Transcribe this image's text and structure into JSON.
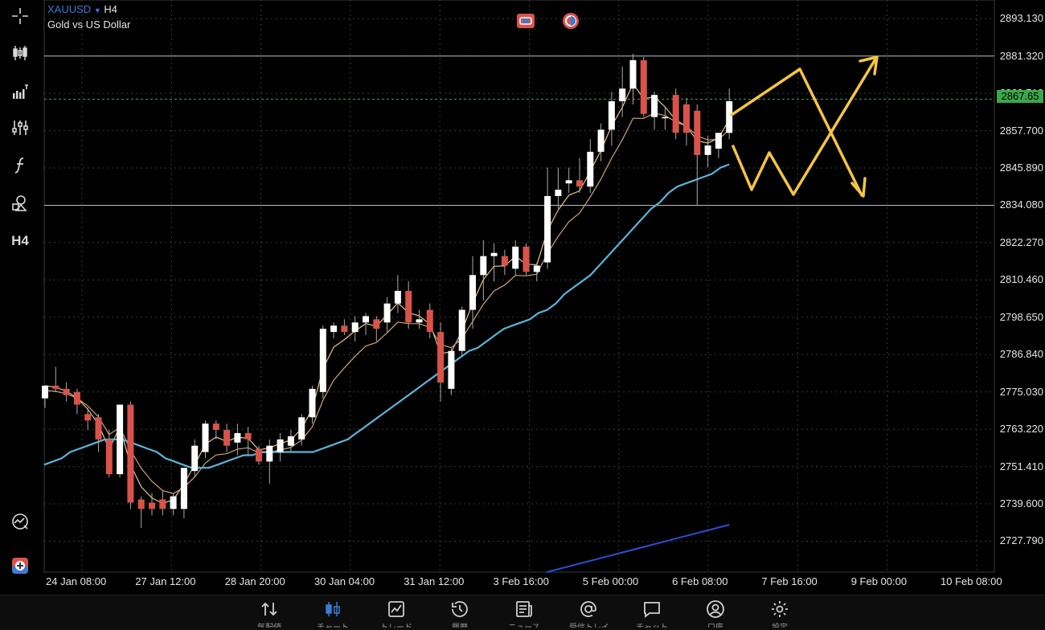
{
  "symbol": {
    "name": "XAUUSD",
    "timeframe": "H4",
    "description": "Gold vs US Dollar"
  },
  "left_toolbar": {
    "timeframe_label": "H4",
    "icons": [
      "crosshair-icon",
      "candle-chart-icon",
      "volume-bars-icon",
      "indicators-icon",
      "function-icon",
      "objects-icon",
      "timeframe-label",
      "quick-analysis-icon",
      "trade-icon"
    ]
  },
  "price_axis": {
    "labels": [
      "2893.130",
      "2881.320",
      "2869.510",
      "2857.700",
      "2845.890",
      "2834.080",
      "2822.270",
      "2810.460",
      "2798.650",
      "2786.840",
      "2775.030",
      "2763.220",
      "2751.410",
      "2739.600",
      "2727.790"
    ],
    "current_price": "2867.65",
    "current_color": "#3aa84a"
  },
  "time_axis": {
    "labels": [
      "24 Jan 08:00",
      "27 Jan 12:00",
      "28 Jan 20:00",
      "30 Jan 04:00",
      "31 Jan 12:00",
      "3 Feb 16:00",
      "5 Feb 00:00",
      "6 Feb 08:00",
      "7 Feb 16:00",
      "9 Feb 00:00",
      "10 Feb 08:00"
    ]
  },
  "colors": {
    "bull": "#ffffff",
    "bear": "#d9534a",
    "ma_fast": "#e8c48a",
    "ma_slow": "#c9a37a",
    "ma_mid": "#5ab4dc",
    "ma_long": "#2a4fd0",
    "arrows": "#f5c542",
    "accent": "#3a7bd5"
  },
  "chart_data": {
    "type": "candlestick",
    "symbol": "XAUUSD",
    "timeframe": "H4",
    "ylim": [
      2718,
      2897
    ],
    "candles": [
      {
        "o": 2773,
        "h": 2777,
        "l": 2770,
        "c": 2777
      },
      {
        "o": 2777,
        "h": 2783,
        "l": 2775,
        "c": 2776
      },
      {
        "o": 2776,
        "h": 2778,
        "l": 2772,
        "c": 2774
      },
      {
        "o": 2775,
        "h": 2776,
        "l": 2768,
        "c": 2771
      },
      {
        "o": 2768,
        "h": 2770,
        "l": 2763,
        "c": 2766
      },
      {
        "o": 2767,
        "h": 2768,
        "l": 2756,
        "c": 2760
      },
      {
        "o": 2760,
        "h": 2763,
        "l": 2748,
        "c": 2749
      },
      {
        "o": 2749,
        "h": 2771,
        "l": 2748,
        "c": 2771
      },
      {
        "o": 2771,
        "h": 2772,
        "l": 2738,
        "c": 2740
      },
      {
        "o": 2741,
        "h": 2742,
        "l": 2732,
        "c": 2738
      },
      {
        "o": 2740,
        "h": 2743,
        "l": 2736,
        "c": 2738
      },
      {
        "o": 2741,
        "h": 2744,
        "l": 2736,
        "c": 2738
      },
      {
        "o": 2738,
        "h": 2743,
        "l": 2736,
        "c": 2742
      },
      {
        "o": 2738,
        "h": 2751,
        "l": 2735,
        "c": 2751
      },
      {
        "o": 2750,
        "h": 2760,
        "l": 2748,
        "c": 2758
      },
      {
        "o": 2756,
        "h": 2766,
        "l": 2754,
        "c": 2765
      },
      {
        "o": 2765,
        "h": 2766,
        "l": 2760,
        "c": 2763
      },
      {
        "o": 2763,
        "h": 2765,
        "l": 2756,
        "c": 2758
      },
      {
        "o": 2759,
        "h": 2765,
        "l": 2755,
        "c": 2762
      },
      {
        "o": 2762,
        "h": 2764,
        "l": 2755,
        "c": 2760
      },
      {
        "o": 2757,
        "h": 2758,
        "l": 2752,
        "c": 2753
      },
      {
        "o": 2753,
        "h": 2760,
        "l": 2746,
        "c": 2758
      },
      {
        "o": 2756,
        "h": 2762,
        "l": 2753,
        "c": 2760
      },
      {
        "o": 2758,
        "h": 2763,
        "l": 2756,
        "c": 2761
      },
      {
        "o": 2760,
        "h": 2768,
        "l": 2758,
        "c": 2767
      },
      {
        "o": 2767,
        "h": 2777,
        "l": 2765,
        "c": 2776
      },
      {
        "o": 2775,
        "h": 2796,
        "l": 2773,
        "c": 2795
      },
      {
        "o": 2794,
        "h": 2797,
        "l": 2792,
        "c": 2796
      },
      {
        "o": 2796,
        "h": 2798,
        "l": 2793,
        "c": 2794
      },
      {
        "o": 2794,
        "h": 2799,
        "l": 2791,
        "c": 2797
      },
      {
        "o": 2797,
        "h": 2800,
        "l": 2793,
        "c": 2799
      },
      {
        "o": 2798,
        "h": 2799,
        "l": 2791,
        "c": 2795
      },
      {
        "o": 2797,
        "h": 2805,
        "l": 2794,
        "c": 2803
      },
      {
        "o": 2803,
        "h": 2812,
        "l": 2800,
        "c": 2807
      },
      {
        "o": 2807,
        "h": 2810,
        "l": 2795,
        "c": 2797
      },
      {
        "o": 2797,
        "h": 2801,
        "l": 2795,
        "c": 2798
      },
      {
        "o": 2801,
        "h": 2803,
        "l": 2792,
        "c": 2794
      },
      {
        "o": 2794,
        "h": 2797,
        "l": 2772,
        "c": 2778
      },
      {
        "o": 2776,
        "h": 2789,
        "l": 2774,
        "c": 2788
      },
      {
        "o": 2788,
        "h": 2802,
        "l": 2786,
        "c": 2801
      },
      {
        "o": 2801,
        "h": 2818,
        "l": 2795,
        "c": 2812
      },
      {
        "o": 2812,
        "h": 2823,
        "l": 2804,
        "c": 2818
      },
      {
        "o": 2818,
        "h": 2822,
        "l": 2810,
        "c": 2819
      },
      {
        "o": 2818,
        "h": 2820,
        "l": 2812,
        "c": 2815
      },
      {
        "o": 2814,
        "h": 2823,
        "l": 2812,
        "c": 2821
      },
      {
        "o": 2821,
        "h": 2822,
        "l": 2812,
        "c": 2813
      },
      {
        "o": 2813,
        "h": 2816,
        "l": 2810,
        "c": 2815
      },
      {
        "o": 2816,
        "h": 2846,
        "l": 2814,
        "c": 2837
      },
      {
        "o": 2837,
        "h": 2846,
        "l": 2833,
        "c": 2839
      },
      {
        "o": 2841,
        "h": 2846,
        "l": 2838,
        "c": 2842
      },
      {
        "o": 2842,
        "h": 2849,
        "l": 2838,
        "c": 2840
      },
      {
        "o": 2840,
        "h": 2855,
        "l": 2838,
        "c": 2851
      },
      {
        "o": 2851,
        "h": 2860,
        "l": 2848,
        "c": 2858
      },
      {
        "o": 2858,
        "h": 2870,
        "l": 2853,
        "c": 2867
      },
      {
        "o": 2867,
        "h": 2878,
        "l": 2862,
        "c": 2871
      },
      {
        "o": 2871,
        "h": 2882,
        "l": 2866,
        "c": 2880
      },
      {
        "o": 2880,
        "h": 2881,
        "l": 2862,
        "c": 2863
      },
      {
        "o": 2862,
        "h": 2870,
        "l": 2858,
        "c": 2869
      },
      {
        "o": 2862,
        "h": 2865,
        "l": 2858,
        "c": 2862
      },
      {
        "o": 2869,
        "h": 2871,
        "l": 2855,
        "c": 2857
      },
      {
        "o": 2866,
        "h": 2868,
        "l": 2853,
        "c": 2857
      },
      {
        "o": 2864,
        "h": 2866,
        "l": 2834,
        "c": 2850
      },
      {
        "o": 2850,
        "h": 2856,
        "l": 2846,
        "c": 2853
      },
      {
        "o": 2852,
        "h": 2857,
        "l": 2849,
        "c": 2857
      },
      {
        "o": 2857,
        "h": 2871,
        "l": 2855,
        "c": 2867
      }
    ],
    "ma_mid": [
      2752,
      2753,
      2754,
      2756,
      2757,
      2758,
      2759,
      2760,
      2760,
      2760,
      2759,
      2758,
      2757,
      2756,
      2754,
      2753,
      2752,
      2751,
      2751,
      2751,
      2752,
      2753,
      2754,
      2755,
      2755,
      2756,
      2756,
      2756,
      2756,
      2756,
      2756,
      2756,
      2757,
      2758,
      2759,
      2760,
      2762,
      2764,
      2766,
      2768,
      2770,
      2772,
      2774,
      2776,
      2778,
      2780,
      2782,
      2784,
      2786,
      2788,
      2789,
      2791,
      2793,
      2795,
      2796,
      2797,
      2798,
      2800,
      2801,
      2803,
      2806,
      2808,
      2810,
      2812,
      2815,
      2818,
      2821,
      2824,
      2827,
      2830,
      2833,
      2835,
      2838,
      2840,
      2841,
      2842,
      2843,
      2844,
      2846,
      2847
    ],
    "ma_long": [
      2718,
      2719,
      2720,
      2721,
      2722,
      2723,
      2724,
      2725,
      2726,
      2727,
      2728,
      2729,
      2730,
      2731,
      2732,
      2733
    ],
    "annotations": {
      "horizontal_levels": [
        2881.3,
        2834.08
      ],
      "current_price_level": 2867.65
    }
  },
  "tabs": [
    {
      "id": "quotes",
      "icon": "quotes-icon",
      "label": "気配値"
    },
    {
      "id": "chart",
      "icon": "chart-icon",
      "label": "チャート",
      "active": true
    },
    {
      "id": "trade",
      "icon": "trade-icon",
      "label": "トレード"
    },
    {
      "id": "history",
      "icon": "history-icon",
      "label": "履歴"
    },
    {
      "id": "news",
      "icon": "news-icon",
      "label": "ニュース"
    },
    {
      "id": "mail",
      "icon": "mail-icon",
      "label": "受信トレイ"
    },
    {
      "id": "chat",
      "icon": "chat-icon",
      "label": "チャット"
    },
    {
      "id": "account",
      "icon": "account-icon",
      "label": "口座"
    },
    {
      "id": "settings",
      "icon": "settings-icon",
      "label": "設定"
    }
  ]
}
